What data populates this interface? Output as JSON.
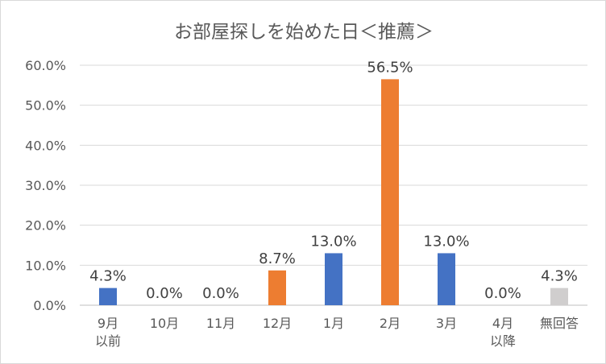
{
  "chart_data": {
    "type": "bar",
    "title": "お部屋探しを始めた日＜推薦＞",
    "categories": [
      "9月\n以前",
      "10月",
      "11月",
      "12月",
      "1月",
      "2月",
      "3月",
      "4月\n以降",
      "無回答"
    ],
    "values": [
      4.3,
      0.0,
      0.0,
      8.7,
      13.0,
      56.5,
      13.0,
      0.0,
      4.3
    ],
    "data_labels": [
      "4.3%",
      "0.0%",
      "0.0%",
      "8.7%",
      "13.0%",
      "56.5%",
      "13.0%",
      "0.0%",
      "4.3%"
    ],
    "bar_colors": [
      "#4472c4",
      "#4472c4",
      "#4472c4",
      "#ed7d31",
      "#4472c4",
      "#ed7d31",
      "#4472c4",
      "#4472c4",
      "#d0cece"
    ],
    "y_ticks": [
      "0.0%",
      "10.0%",
      "20.0%",
      "30.0%",
      "40.0%",
      "50.0%",
      "60.0%"
    ],
    "ylim": [
      0,
      60
    ],
    "grid": true,
    "legend": "none",
    "xlabel": "",
    "ylabel": ""
  }
}
